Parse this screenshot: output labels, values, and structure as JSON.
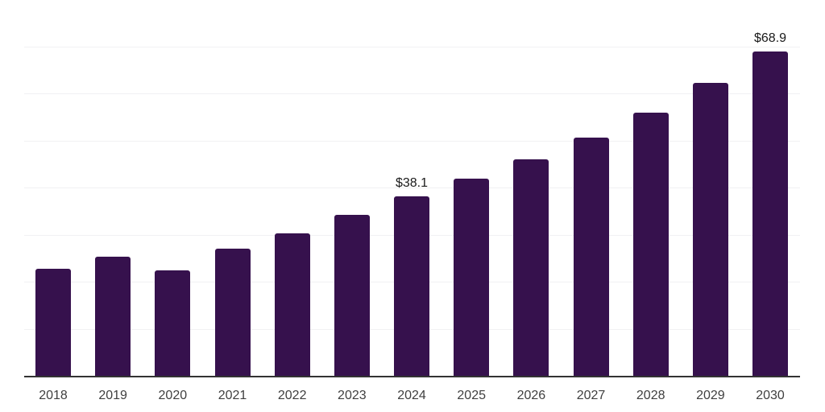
{
  "chart_data": {
    "type": "bar",
    "categories": [
      "2018",
      "2019",
      "2020",
      "2021",
      "2022",
      "2023",
      "2024",
      "2025",
      "2026",
      "2027",
      "2028",
      "2029",
      "2030"
    ],
    "values": [
      22.8,
      25.3,
      22.4,
      27.0,
      30.3,
      34.2,
      38.1,
      41.9,
      46.0,
      50.6,
      55.9,
      62.2,
      68.9
    ],
    "data_labels": [
      null,
      null,
      null,
      null,
      null,
      null,
      "$38.1",
      null,
      null,
      null,
      null,
      null,
      "$68.9"
    ],
    "ylim": [
      0,
      80
    ],
    "gridline_step": 10,
    "grid": "horizontal-only",
    "legend_position": "none",
    "y_tick_labels_shown": false,
    "colors": {
      "bar": "#36114d",
      "gridline": "#f1f1f3",
      "axis_line": "#333333",
      "tick_label": "#3f3f3f",
      "data_label": "#1a1a1a",
      "background": "#ffffff"
    }
  }
}
